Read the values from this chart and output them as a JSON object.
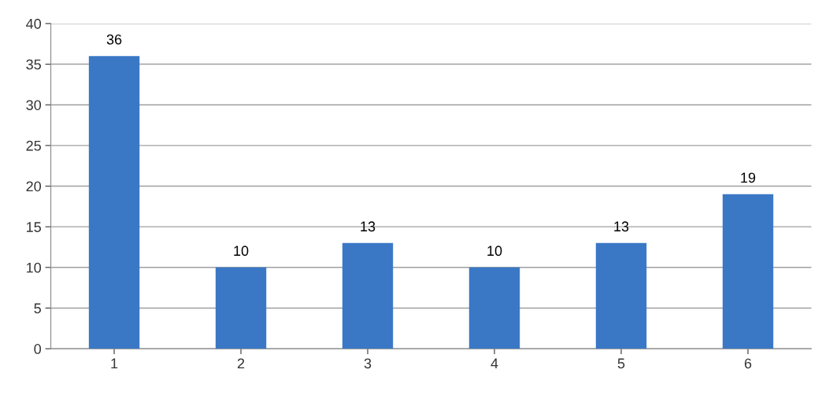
{
  "chart_data": {
    "type": "bar",
    "categories": [
      "1",
      "2",
      "3",
      "4",
      "5",
      "6"
    ],
    "values": [
      36,
      10,
      13,
      10,
      13,
      19
    ],
    "color": "#3a78c6",
    "ylim": [
      0,
      40
    ],
    "yticks": [
      0,
      5,
      10,
      15,
      20,
      25,
      30,
      35,
      40
    ],
    "grid": "y",
    "data_labels": true
  }
}
